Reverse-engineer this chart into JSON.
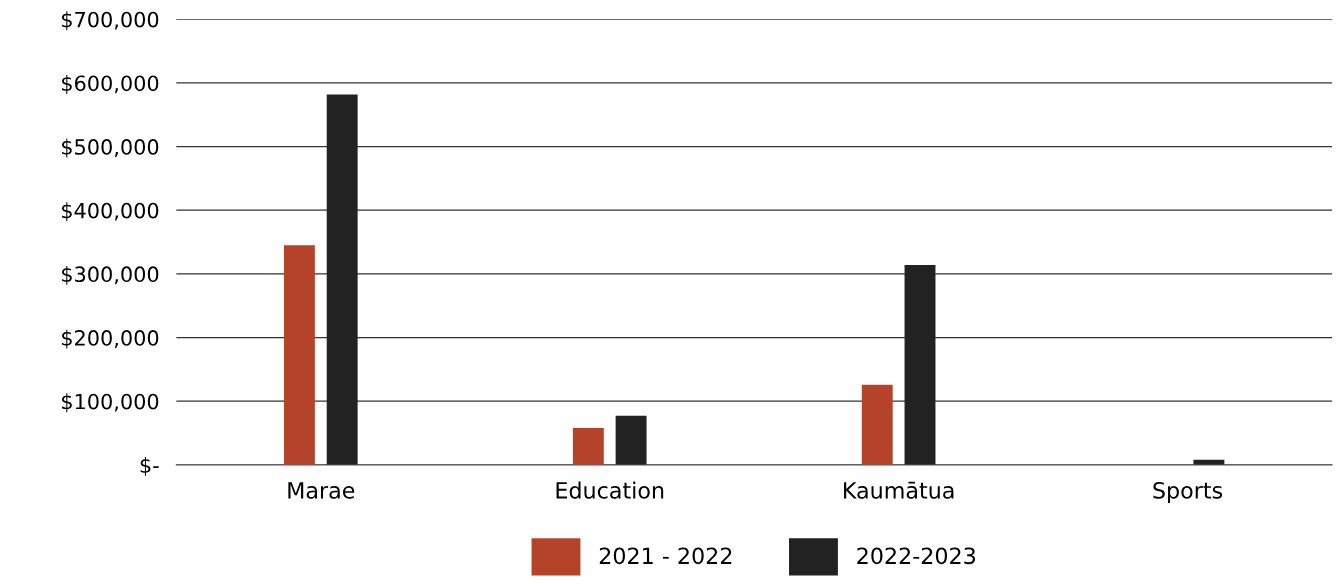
{
  "chart_data": {
    "type": "bar",
    "categories": [
      "Marae",
      "Education",
      "Kaumātua",
      "Sports"
    ],
    "series": [
      {
        "name": "2021 - 2022",
        "color": "#b5432a",
        "values": [
          345000,
          58000,
          126000,
          0
        ]
      },
      {
        "name": "2022-2023",
        "color": "#222222",
        "values": [
          582000,
          77000,
          314000,
          8000
        ]
      }
    ],
    "ylim": [
      0,
      700000
    ],
    "yticks": [
      {
        "value": 0,
        "label": "$-"
      },
      {
        "value": 100000,
        "label": "$100,000"
      },
      {
        "value": 200000,
        "label": "$200,000"
      },
      {
        "value": 300000,
        "label": "$300,000"
      },
      {
        "value": 400000,
        "label": "$400,000"
      },
      {
        "value": 500000,
        "label": "$500,000"
      },
      {
        "value": 600000,
        "label": "$600,000"
      },
      {
        "value": 700000,
        "label": "$700,000"
      }
    ],
    "grid": "y",
    "legend": "bottom"
  }
}
